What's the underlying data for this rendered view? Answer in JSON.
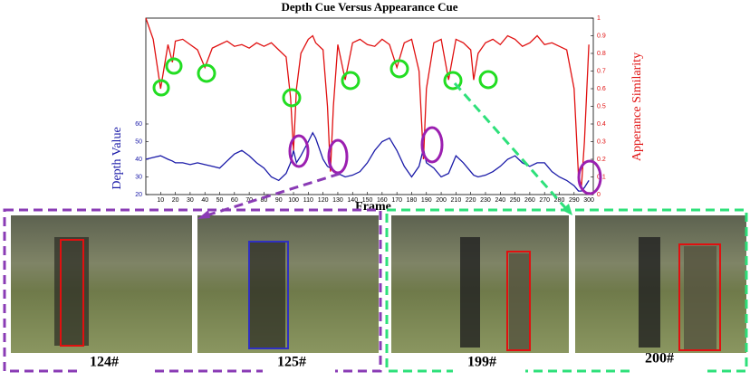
{
  "chart_data": {
    "type": "line",
    "title": "Depth Cue Versus Appearance Cue",
    "xlabel": "Frame",
    "ylabel": "Depth Value",
    "y2label": "Apperance Similarity",
    "x": [
      0,
      5,
      10,
      15,
      18,
      20,
      25,
      30,
      35,
      40,
      45,
      50,
      55,
      60,
      65,
      70,
      75,
      80,
      85,
      90,
      95,
      98,
      100,
      102,
      105,
      110,
      113,
      115,
      120,
      123,
      125,
      127,
      130,
      135,
      140,
      145,
      150,
      155,
      160,
      165,
      170,
      175,
      180,
      185,
      188,
      190,
      195,
      200,
      205,
      210,
      215,
      220,
      222,
      225,
      230,
      235,
      240,
      245,
      250,
      255,
      260,
      265,
      270,
      275,
      280,
      285,
      290,
      293,
      295,
      297,
      300
    ],
    "series": [
      {
        "color": "#1a1aa8",
        "values": [
          40,
          41,
          42,
          40,
          39,
          38,
          38,
          37,
          38,
          37,
          36,
          35,
          39,
          43,
          45,
          42,
          38,
          35,
          30,
          28,
          32,
          38,
          45,
          38,
          42,
          50,
          55,
          52,
          40,
          36,
          35,
          34,
          32,
          30,
          31,
          33,
          38,
          45,
          50,
          52,
          45,
          36,
          30,
          36,
          46,
          38,
          35,
          30,
          32,
          42,
          38,
          33,
          31,
          30,
          31,
          33,
          36,
          40,
          42,
          38,
          36,
          38,
          38,
          33,
          30,
          28,
          25,
          22,
          22,
          24,
          28
        ]
      },
      {
        "color": "#e01010",
        "axis": "y2",
        "values": [
          1,
          0.88,
          0.6,
          0.85,
          0.75,
          0.87,
          0.88,
          0.85,
          0.82,
          0.72,
          0.83,
          0.85,
          0.87,
          0.84,
          0.85,
          0.83,
          0.86,
          0.84,
          0.86,
          0.82,
          0.78,
          0.55,
          0.25,
          0.6,
          0.8,
          0.88,
          0.9,
          0.86,
          0.82,
          0.5,
          0.13,
          0.5,
          0.85,
          0.65,
          0.86,
          0.88,
          0.85,
          0.84,
          0.88,
          0.85,
          0.72,
          0.86,
          0.88,
          0.7,
          0.2,
          0.6,
          0.86,
          0.88,
          0.65,
          0.88,
          0.86,
          0.82,
          0.65,
          0.8,
          0.86,
          0.88,
          0.85,
          0.9,
          0.88,
          0.84,
          0.86,
          0.9,
          0.85,
          0.86,
          0.84,
          0.82,
          0.6,
          0.1,
          0.05,
          0.3,
          0.85
        ]
      }
    ],
    "xlim": [
      0,
      303
    ],
    "xticks": [
      10,
      20,
      30,
      40,
      50,
      60,
      70,
      80,
      90,
      100,
      110,
      120,
      130,
      140,
      150,
      160,
      170,
      180,
      190,
      200,
      210,
      220,
      230,
      240,
      250,
      260,
      270,
      280,
      290,
      300
    ],
    "ylim": [
      20,
      120
    ],
    "yticks": [
      20,
      30,
      40,
      50,
      60
    ],
    "y2lim": [
      0,
      1
    ],
    "y2ticks": [
      0,
      0.1,
      0.2,
      0.3,
      0.4,
      0.5,
      0.6,
      0.7,
      0.8,
      0.9,
      1
    ]
  },
  "figure": {
    "panels": [
      {
        "label": "124#"
      },
      {
        "label": "125#"
      },
      {
        "label": "199#"
      },
      {
        "label": "200#"
      }
    ]
  }
}
